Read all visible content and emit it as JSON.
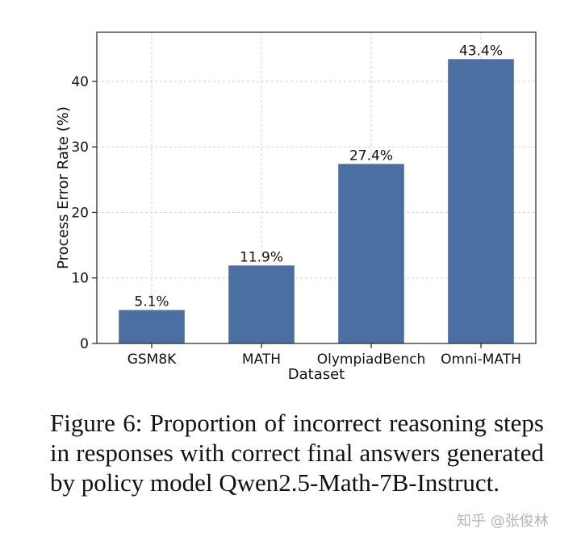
{
  "chart_data": {
    "type": "bar",
    "categories": [
      "GSM8K",
      "MATH",
      "OlympiadBench",
      "Omni-MATH"
    ],
    "values": [
      5.1,
      11.9,
      27.4,
      43.4
    ],
    "value_labels": [
      "5.1%",
      "11.9%",
      "27.4%",
      "43.4%"
    ],
    "xlabel": "Dataset",
    "ylabel": "Process Error Rate (%)",
    "ylim": [
      0,
      47.5
    ],
    "yticks": [
      0,
      10,
      20,
      30,
      40
    ],
    "grid": true,
    "bar_color": "#4a6fa0"
  },
  "caption": "Figure 6: Proportion of incorrect reasoning steps in responses with correct final answers generated by policy model Qwen2.5-Math-7B-Instruct.",
  "watermark": "知乎 @张俊林"
}
